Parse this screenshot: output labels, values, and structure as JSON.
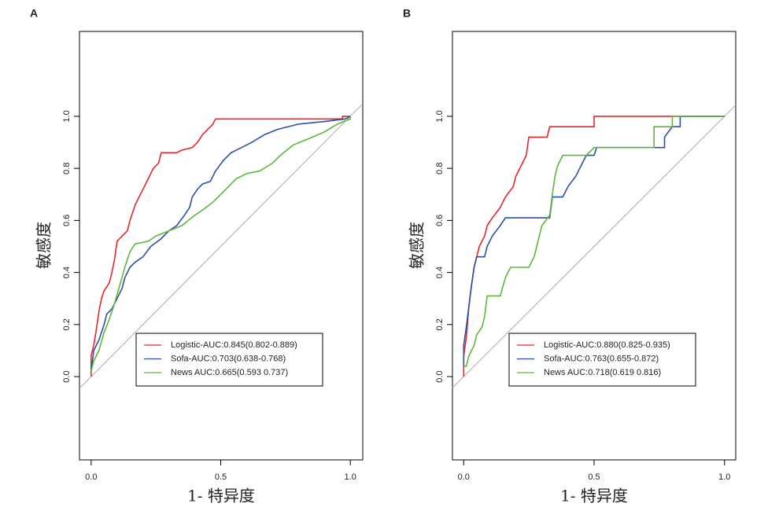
{
  "chart_data": [
    {
      "type": "line",
      "panel_label": "A",
      "x_label": "1- 特异度",
      "y_label": "敏感度",
      "xlim": [
        -0.045,
        1.048
      ],
      "ylim": [
        -0.32,
        1.326
      ],
      "xticks": [
        {
          "value": 0,
          "label": "0.0"
        },
        {
          "value": 0.5,
          "label": "0.5"
        },
        {
          "value": 1,
          "label": "1.0"
        }
      ],
      "yticks": [
        {
          "value": 0,
          "label": "0.0"
        },
        {
          "value": 0.2,
          "label": "0.2"
        },
        {
          "value": 0.4,
          "label": "0.4"
        },
        {
          "value": 0.6,
          "label": "0.6"
        },
        {
          "value": 0.8,
          "label": "0.8"
        },
        {
          "value": 1,
          "label": "1.0"
        }
      ],
      "legend_position": "bottom-right",
      "series": [
        {
          "name": "Logistic-AUC:0.845(0.802-0.889)",
          "color": "#e8262a",
          "x": [
            0,
            0,
            0.01,
            0.02,
            0.03,
            0.04,
            0.05,
            0.07,
            0.08,
            0.09,
            0.1,
            0.12,
            0.14,
            0.15,
            0.17,
            0.19,
            0.2,
            0.22,
            0.24,
            0.26,
            0.27,
            0.33,
            0.35,
            0.39,
            0.41,
            0.43,
            0.45,
            0.47,
            0.48,
            0.97,
            0.97,
            1
          ],
          "values": [
            0,
            0.08,
            0.12,
            0.18,
            0.25,
            0.3,
            0.33,
            0.36,
            0.4,
            0.45,
            0.52,
            0.54,
            0.56,
            0.6,
            0.66,
            0.7,
            0.72,
            0.76,
            0.8,
            0.82,
            0.86,
            0.86,
            0.87,
            0.88,
            0.9,
            0.93,
            0.95,
            0.97,
            0.99,
            0.99,
            1,
            1
          ]
        },
        {
          "name": "Sofa-AUC:0.703(0.638-0.768)",
          "color": "#2b4fa8",
          "x": [
            0,
            0.01,
            0.03,
            0.05,
            0.06,
            0.08,
            0.1,
            0.12,
            0.13,
            0.15,
            0.17,
            0.2,
            0.23,
            0.27,
            0.3,
            0.33,
            0.36,
            0.38,
            0.39,
            0.41,
            0.43,
            0.46,
            0.48,
            0.51,
            0.54,
            0.58,
            0.62,
            0.67,
            0.72,
            0.8,
            0.9,
            0.98,
            1
          ],
          "values": [
            0.02,
            0.1,
            0.14,
            0.2,
            0.24,
            0.26,
            0.3,
            0.34,
            0.38,
            0.42,
            0.44,
            0.46,
            0.5,
            0.53,
            0.56,
            0.58,
            0.62,
            0.65,
            0.69,
            0.72,
            0.74,
            0.75,
            0.79,
            0.83,
            0.86,
            0.88,
            0.9,
            0.93,
            0.95,
            0.97,
            0.98,
            0.99,
            1
          ]
        },
        {
          "name": "News AUC:0.665(0.593 0.737)",
          "color": "#5cb83a",
          "x": [
            0,
            0.01,
            0.03,
            0.05,
            0.07,
            0.09,
            0.11,
            0.13,
            0.15,
            0.17,
            0.22,
            0.25,
            0.3,
            0.35,
            0.4,
            0.43,
            0.47,
            0.5,
            0.53,
            0.56,
            0.6,
            0.65,
            0.7,
            0.73,
            0.78,
            0.83,
            0.9,
            0.95,
            1,
            1
          ],
          "values": [
            0.02,
            0.06,
            0.1,
            0.17,
            0.22,
            0.28,
            0.35,
            0.42,
            0.48,
            0.51,
            0.52,
            0.54,
            0.56,
            0.58,
            0.62,
            0.64,
            0.67,
            0.7,
            0.73,
            0.76,
            0.78,
            0.79,
            0.82,
            0.85,
            0.89,
            0.91,
            0.94,
            0.97,
            0.99,
            1
          ]
        }
      ]
    },
    {
      "type": "line",
      "panel_label": "B",
      "x_label": "1- 特异度",
      "y_label": "敏感度",
      "xlim": [
        -0.043,
        1.043
      ],
      "ylim": [
        -0.32,
        1.326
      ],
      "xticks": [
        {
          "value": 0,
          "label": "0.0"
        },
        {
          "value": 0.5,
          "label": "0.5"
        },
        {
          "value": 1,
          "label": "1.0"
        }
      ],
      "yticks": [
        {
          "value": 0,
          "label": "0.0"
        },
        {
          "value": 0.2,
          "label": "0.2"
        },
        {
          "value": 0.4,
          "label": "0.4"
        },
        {
          "value": 0.6,
          "label": "0.6"
        },
        {
          "value": 0.8,
          "label": "0.8"
        },
        {
          "value": 1,
          "label": "1.0"
        }
      ],
      "legend_position": "bottom-right",
      "series": [
        {
          "name": "Logistic-AUC:0.880(0.825-0.935)",
          "color": "#e8262a",
          "x": [
            0,
            0,
            0.01,
            0.02,
            0.03,
            0.04,
            0.05,
            0.06,
            0.08,
            0.09,
            0.11,
            0.14,
            0.16,
            0.19,
            0.2,
            0.22,
            0.24,
            0.25,
            0.32,
            0.33,
            0.5,
            0.5,
            1
          ],
          "values": [
            0,
            0.08,
            0.15,
            0.27,
            0.35,
            0.42,
            0.46,
            0.5,
            0.54,
            0.58,
            0.61,
            0.65,
            0.69,
            0.73,
            0.77,
            0.81,
            0.85,
            0.92,
            0.92,
            0.96,
            0.96,
            1,
            1
          ]
        },
        {
          "name": "Sofa-AUC:0.763(0.655-0.872)",
          "color": "#2b4fa8",
          "x": [
            0,
            0,
            0.01,
            0.02,
            0.03,
            0.04,
            0.05,
            0.08,
            0.09,
            0.11,
            0.14,
            0.16,
            0.33,
            0.34,
            0.38,
            0.4,
            0.43,
            0.45,
            0.47,
            0.5,
            0.51,
            0.77,
            0.77,
            0.8,
            0.83,
            0.83,
            0.87,
            1
          ],
          "values": [
            0.04,
            0.12,
            0.19,
            0.27,
            0.35,
            0.42,
            0.46,
            0.46,
            0.5,
            0.54,
            0.58,
            0.61,
            0.61,
            0.69,
            0.69,
            0.73,
            0.77,
            0.81,
            0.85,
            0.85,
            0.88,
            0.88,
            0.92,
            0.96,
            0.96,
            1,
            1,
            1
          ]
        },
        {
          "name": "News AUC:0.718(0.619 0.816)",
          "color": "#5cb83a",
          "x": [
            0,
            0.01,
            0.02,
            0.04,
            0.05,
            0.07,
            0.08,
            0.09,
            0.14,
            0.16,
            0.18,
            0.25,
            0.27,
            0.28,
            0.29,
            0.3,
            0.33,
            0.34,
            0.35,
            0.36,
            0.38,
            0.47,
            0.5,
            0.73,
            0.73,
            0.8,
            0.8,
            1
          ],
          "values": [
            0.04,
            0.04,
            0.08,
            0.12,
            0.16,
            0.19,
            0.23,
            0.31,
            0.31,
            0.38,
            0.42,
            0.42,
            0.46,
            0.5,
            0.54,
            0.58,
            0.62,
            0.7,
            0.77,
            0.81,
            0.85,
            0.85,
            0.88,
            0.88,
            0.96,
            0.96,
            1,
            1
          ]
        }
      ]
    }
  ]
}
